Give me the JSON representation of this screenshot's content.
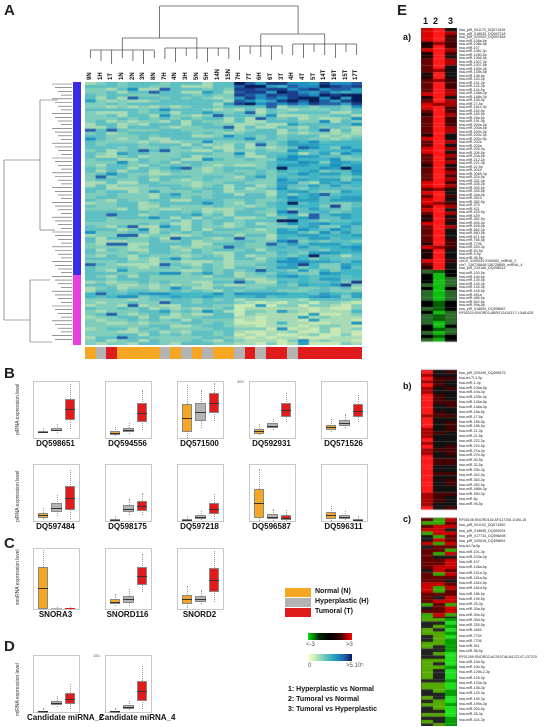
{
  "panels": {
    "A": "A",
    "B": "B",
    "C": "C",
    "D": "D",
    "E": "E"
  },
  "heatmap_A": {
    "samples": [
      "9N",
      "1H",
      "1T",
      "1N",
      "2N",
      "3N",
      "8N",
      "7H",
      "4N",
      "3H",
      "5N",
      "5H",
      "14N",
      "15N",
      "7H",
      "7T",
      "6H",
      "6T",
      "3T",
      "4H",
      "4T",
      "5T",
      "14T",
      "16T",
      "15T",
      "17T"
    ]
  },
  "group_legend": {
    "normal": "Normal (N)",
    "hyperplastic": "Hyperplastic (H)",
    "tumoral": "Tumoral (T)",
    "colors": {
      "normal": "#f5a623",
      "hyperplastic": "#b3b3b3",
      "tumoral": "#e01b1b"
    }
  },
  "scale_legend": {
    "fold_low": "<-3",
    "fold_high": ">3",
    "expr_low": "0",
    "expr_high": ">5.10⁵"
  },
  "comparisons": [
    "1: Hyperplastic vs Normal",
    "2: Tumoral vs Normal",
    "3: Tumoral vs Hyperplastic"
  ],
  "ylabels": {
    "pirna": "piRNA expression level",
    "snorna": "snoRNA expression level",
    "mirna": "miRNA expression level"
  },
  "boxplots_B_row1": [
    {
      "name": "DQ598651",
      "ymax": "",
      "n": [
        10,
        12
      ],
      "h": [
        12,
        18
      ],
      "t": [
        32,
        70
      ]
    },
    {
      "name": "DQ594556",
      "ymax": "",
      "n": [
        6,
        12
      ],
      "h": [
        10,
        18
      ],
      "t": [
        28,
        62
      ]
    },
    {
      "name": "DQ571500",
      "ymax": "",
      "n": [
        10,
        60
      ],
      "h": [
        30,
        62
      ],
      "t": [
        45,
        80
      ]
    },
    {
      "name": "DQ592931",
      "ymax": "300",
      "n": [
        8,
        16
      ],
      "h": [
        18,
        26
      ],
      "t": [
        38,
        62
      ]
    },
    {
      "name": "DQ571526",
      "ymax": "",
      "n": [
        14,
        24
      ],
      "h": [
        22,
        32
      ],
      "t": [
        38,
        60
      ]
    }
  ],
  "boxplots_B_row2": [
    {
      "name": "DQ597484",
      "ymax": "",
      "n": [
        6,
        14
      ],
      "h": [
        16,
        32
      ],
      "t": [
        20,
        62
      ]
    },
    {
      "name": "DQ598175",
      "ymax": "",
      "n": [
        1,
        3
      ],
      "h": [
        16,
        28
      ],
      "t": [
        18,
        36
      ]
    },
    {
      "name": "DQ597218",
      "ymax": "",
      "n": [
        1,
        3
      ],
      "h": [
        4,
        10
      ],
      "t": [
        12,
        32
      ]
    },
    {
      "name": "DQ596587",
      "ymax": "",
      "n": [
        6,
        58
      ],
      "h": [
        4,
        12
      ],
      "t": [
        2,
        10
      ]
    },
    {
      "name": "DQ596311",
      "ymax": "",
      "n": [
        4,
        16
      ],
      "h": [
        4,
        10
      ],
      "t": [
        1,
        3
      ]
    }
  ],
  "boxplots_C": [
    {
      "name": "SNORA3",
      "ymax": "",
      "n": [
        0,
        70
      ],
      "h": [
        0,
        0
      ],
      "t": [
        0,
        0
      ]
    },
    {
      "name": "SNORD116",
      "ymax": "",
      "n": [
        8,
        16
      ],
      "h": [
        10,
        22
      ],
      "t": [
        40,
        70
      ]
    },
    {
      "name": "SNORD2",
      "ymax": "",
      "n": [
        8,
        24
      ],
      "h": [
        12,
        22
      ],
      "t": [
        28,
        68
      ]
    }
  ],
  "boxplots_D": [
    {
      "name": "Candidate  miRNA_2",
      "ymax": "",
      "n": [
        0,
        2
      ],
      "h": [
        12,
        20
      ],
      "t": [
        14,
        34
      ]
    },
    {
      "name": "Candidate  miRNA_4",
      "ymax": "150",
      "n": [
        0,
        2
      ],
      "h": [
        6,
        12
      ],
      "t": [
        20,
        56
      ]
    }
  ],
  "panel_E": {
    "cols": [
      "1",
      "2",
      "3"
    ],
    "sections": [
      "a)",
      "b)",
      "c)"
    ],
    "labels_a": [
      "hsa_piR_001170_DQ571526",
      "hsa_piR_018635_DQ597218",
      "hsa_piR_020009_DQ597484",
      "hsa-miR-106a-5p",
      "hsa-miR-106b-5p",
      "hsa-miR-107",
      "hsa-miR-1180-3p",
      "hsa-miR-1260-5p",
      "hsa-miR-1266-5p",
      "hsa-miR-1307-3p",
      "hsa-miR-1307-5p",
      "hsa-miR-130b-3p",
      "hsa-miR-135b-5p",
      "hsa-miR-138-5p",
      "hsa-miR-140-3p",
      "hsa-miR-141-3p",
      "hsa-miR-142-3p",
      "hsa-miR-144-5p",
      "hsa-miR-148a-3p",
      "hsa-miR-148b-3p",
      "hsa-miR-155-5p",
      "hsa-miR-17-5p",
      "hsa-miR-181c-3p",
      "hsa-miR-182-5p",
      "hsa-miR-183-5p",
      "hsa-miR-18a-5p",
      "hsa-miR-191-5p",
      "hsa-miR-200a-3p",
      "hsa-miR-200a-5p",
      "hsa-miR-200b-3p",
      "hsa-miR-200c-3p",
      "hsa-miR-200c-5p",
      "hsa-miR-202a",
      "hsa-miR-203a",
      "hsa-miR-205-3p",
      "hsa-miR-206-5p",
      "hsa-miR-20a-5p",
      "hsa-miR-212-3p",
      "hsa-miR-221-3p",
      "hsa-miR-22-5p",
      "hsa-miR-301b",
      "hsa-miR-3065-3p",
      "hsa-miR-324-5p",
      "hsa-miR-331-3p",
      "hsa-miR-335-3p",
      "hsa-miR-340-5p",
      "hsa-miR-345-5p",
      "hsa-miR-34a-5p",
      "hsa-miR-3615",
      "hsa-miR-362-5p",
      "hsa-miR-375",
      "hsa-miR-421",
      "hsa-miR-425-5p",
      "hsa-miR-429",
      "hsa-miR-452-5p",
      "hsa-miR-454-3p",
      "hsa-miR-628-5p",
      "hsa-miR-652-3p",
      "hsa-miR-660-5p",
      "hsa-miR-671-5p",
      "hsa-miR-766-5p",
      "hsa-miR-7706",
      "hsa-miR-92b-3p",
      "hsa-miR-93-5p",
      "hsa-miR-9-5p",
      "hsa-miR-96-5p",
      "chr10_3190034:3190083_miRNA_2",
      "chr7_136728848:136728895_miRNA_4",
      "hsa_piR_019166_DQ596311"
    ],
    "labels_a_low": [
      "hsa-miR-100-5p",
      "hsa-miR-10b-5p",
      "hsa-miR-139-5p",
      "hsa-miR-143-3p",
      "hsa-miR-144-3p",
      "hsa-miR-145-5p",
      "hsa-miR-451a",
      "hsa-miR-486-5p",
      "hsa-miR-542-5p",
      "hsa-miR-99a-5p",
      "hsa_piR_018654_DQ596587",
      "RF00324;SNORD3;ABR012419317:1:548-625"
    ],
    "labels_b": [
      "hsa_piR_020496_DQ598175",
      "hsa-let-7f-1-3p",
      "hsa-miR-1-3p",
      "hsa-miR-106a-5p",
      "hsa-miR-10a-3p",
      "hsa-miR-130b-3p",
      "hsa-miR-146a-5p",
      "hsa-miR-148a-3p",
      "hsa-miR-15a-5p",
      "hsa-miR-17-5p",
      "hsa-miR-185-5p",
      "hsa-miR-186-5p",
      "hsa-miR-21-3p",
      "hsa-miR-21-5p",
      "hsa-miR-222-3p",
      "hsa-miR-224-5p",
      "hsa-miR-27a-3p",
      "hsa-miR-27b-5p",
      "hsa-miR-30-5p",
      "hsa-miR-32-5p",
      "hsa-miR-33b-3p",
      "hsa-miR-342-5p",
      "hsa-miR-363-3p",
      "hsa-miR-452-5p",
      "hsa-miR-486b-3p",
      "hsa-miR-590-3p",
      "hsa-miR-6p",
      "hsa-miR-96-5p"
    ],
    "labels_c": [
      "RF00106;SNORD116;AF317208.1/106-15",
      "hsa_piR_001152_DQ571500",
      "hsa_piR_018656_DQ592931",
      "hsa_piR_017734_DQ596498",
      "hsa_piR_020618_DQ598651",
      "hsa-let-7a-5p",
      "hsa-miR-101-3p",
      "hsa-miR-103a-3p",
      "hsa-miR-107",
      "hsa-miR-148a-5p",
      "hsa-miR-151a-3p",
      "hsa-miR-181a-5p",
      "hsa-miR-181b-5p",
      "hsa-miR-181d-5p",
      "hsa-miR-186-5p",
      "hsa-miR-195-5p",
      "hsa-miR-25-3p",
      "hsa-miR-30a-5p",
      "hsa-miR-30b-5p",
      "hsa-miR-30d-5p",
      "hsa-miR-335-5p",
      "hsa-miR-4454",
      "hsa-miR-7704",
      "hsa-miR-7706",
      "hsa-miR-941",
      "hsa-miR-98-5p",
      "RF01299;SNORD2;AC010746.8/137147-137215",
      "hsa-miR-10a-5p",
      "hsa-miR-10b-5p",
      "hsa-miR-125b-2-3p",
      "hsa-miR-126-3p",
      "hsa-miR-133a-3p",
      "hsa-miR-136-3p",
      "hsa-miR-143-3p",
      "hsa-miR-145-3p",
      "hsa-miR-199a-3p",
      "hsa-miR-204-5p",
      "hsa-miR-28-3p",
      "hsa-miR-424-3p"
    ]
  }
}
